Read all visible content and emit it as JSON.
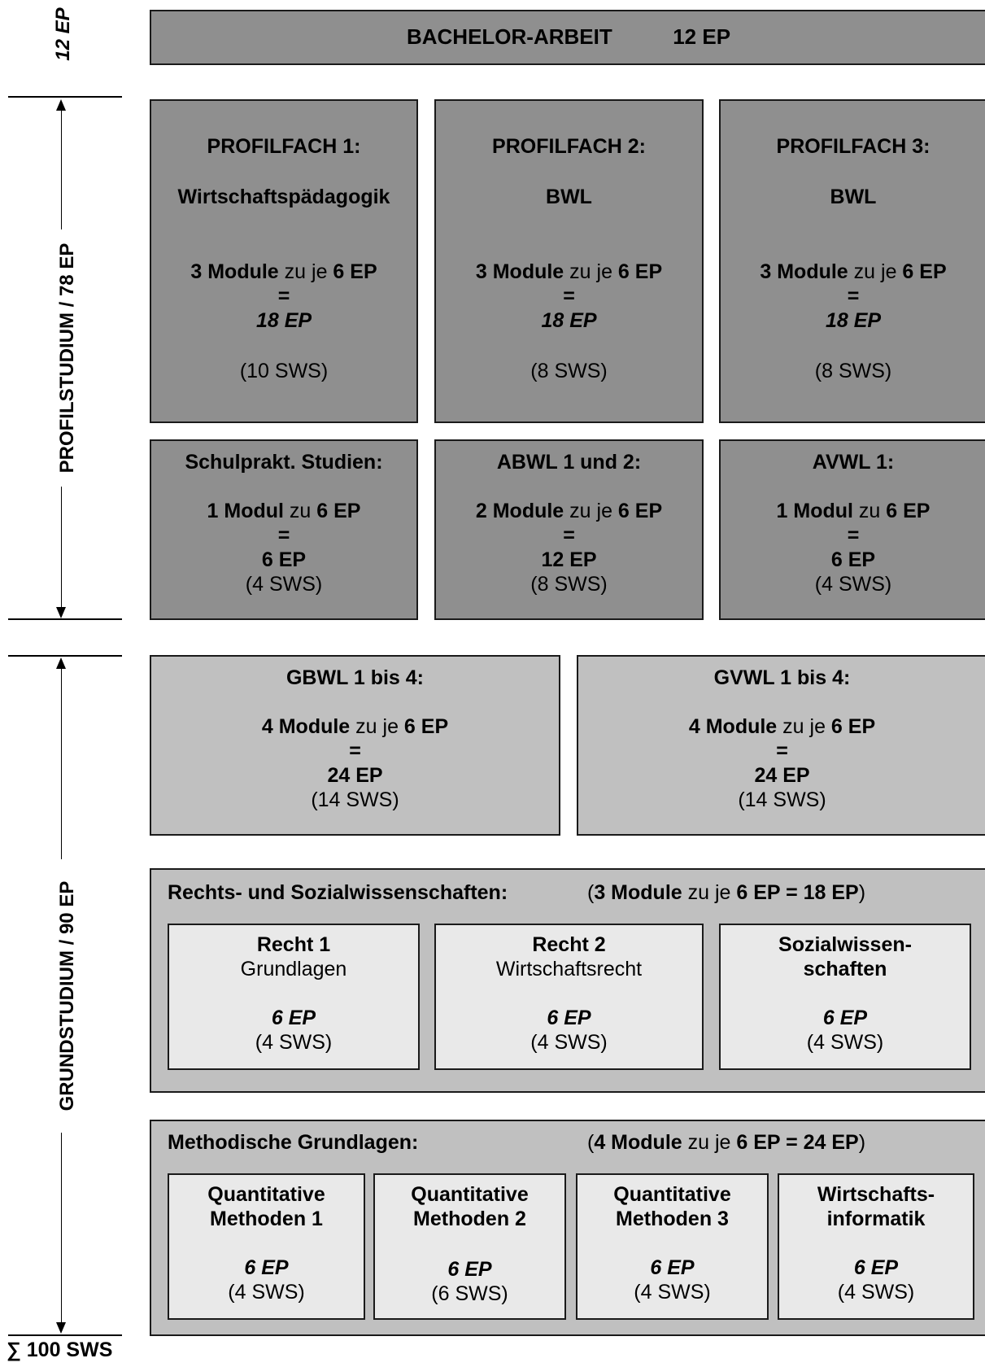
{
  "bachelor": {
    "title": "BACHELOR-ARBEIT",
    "ep": "12 EP"
  },
  "side": {
    "top_label": "12 EP",
    "profil_label": "PROFILSTUDIUM / 78 EP",
    "grund_label": "GRUNDSTUDIUM / 90 EP",
    "sum_label": "∑ 100 SWS"
  },
  "profil": [
    {
      "title": "PROFILFACH 1:",
      "subject": "Wirtschaftspädagogik",
      "count": "3 Module",
      "mid": " zu je ",
      "ep": "6 EP",
      "eq": "=",
      "total": "18 EP",
      "sws": "(10 SWS)"
    },
    {
      "title": "PROFILFACH 2:",
      "subject": "BWL",
      "count": "3 Module",
      "mid": " zu je ",
      "ep": "6 EP",
      "eq": "=",
      "total": "18 EP",
      "sws": "(8 SWS)"
    },
    {
      "title": "PROFILFACH 3:",
      "subject": "BWL",
      "count": "3 Module",
      "mid": " zu je ",
      "ep": "6 EP",
      "eq": "=",
      "total": "18 EP",
      "sws": "(8 SWS)"
    }
  ],
  "profil2": [
    {
      "title": "Schulprakt. Studien:",
      "count": "1 Modul",
      "mid": " zu ",
      "ep": "6 EP",
      "eq": "=",
      "total": "6 EP",
      "sws": "(4 SWS)"
    },
    {
      "title": "ABWL 1 und 2:",
      "count": "2 Module",
      "mid": " zu je ",
      "ep": "6 EP",
      "eq": "=",
      "total": "12 EP",
      "sws": "(8 SWS)"
    },
    {
      "title": "AVWL 1:",
      "count": "1 Modul",
      "mid": " zu ",
      "ep": "6 EP",
      "eq": "=",
      "total": "6 EP",
      "sws": "(4 SWS)"
    }
  ],
  "grund": [
    {
      "title": "GBWL 1 bis 4:",
      "count": "4 Module",
      "mid": " zu je ",
      "ep": "6 EP",
      "eq": "=",
      "total": "24 EP",
      "sws": "(14 SWS)"
    },
    {
      "title": "GVWL 1 bis 4:",
      "count": "4 Module",
      "mid": " zu je ",
      "ep": "6 EP",
      "eq": "=",
      "total": "24 EP",
      "sws": "(14 SWS)"
    }
  ],
  "recht": {
    "heading": "Rechts- und Sozialwissenschaften:",
    "summary": {
      "open": "(",
      "count": "3 Module",
      "mid": " zu je ",
      "total": "6 EP = 18 EP",
      "close": ")"
    },
    "modules": [
      {
        "line1": "Recht 1",
        "line2": "Grundlagen",
        "ep": "6 EP",
        "sws": "(4 SWS)"
      },
      {
        "line1": "Recht 2",
        "line2": "Wirtschaftsrecht",
        "ep": "6 EP",
        "sws": "(4 SWS)"
      },
      {
        "line1": "Sozialwissen-",
        "line2": "schaften",
        "ep": "6 EP",
        "sws": "(4 SWS)"
      }
    ]
  },
  "methoden": {
    "heading": "Methodische Grundlagen:",
    "summary": {
      "open": "(",
      "count": "4 Module",
      "mid": " zu je ",
      "total": "6 EP = 24 EP",
      "close": ")"
    },
    "modules": [
      {
        "line1": "Quantitative",
        "line2": "Methoden 1",
        "ep": "6 EP",
        "sws": "(4 SWS)"
      },
      {
        "line1": "Quantitative",
        "line2": "Methoden 2",
        "ep": "6 EP",
        "sws": "(6 SWS)"
      },
      {
        "line1": "Quantitative",
        "line2": "Methoden 3",
        "ep": "6 EP",
        "sws": "(4 SWS)"
      },
      {
        "line1": "Wirtschafts-",
        "line2": "informatik",
        "ep": "6 EP",
        "sws": "(4 SWS)"
      }
    ]
  }
}
